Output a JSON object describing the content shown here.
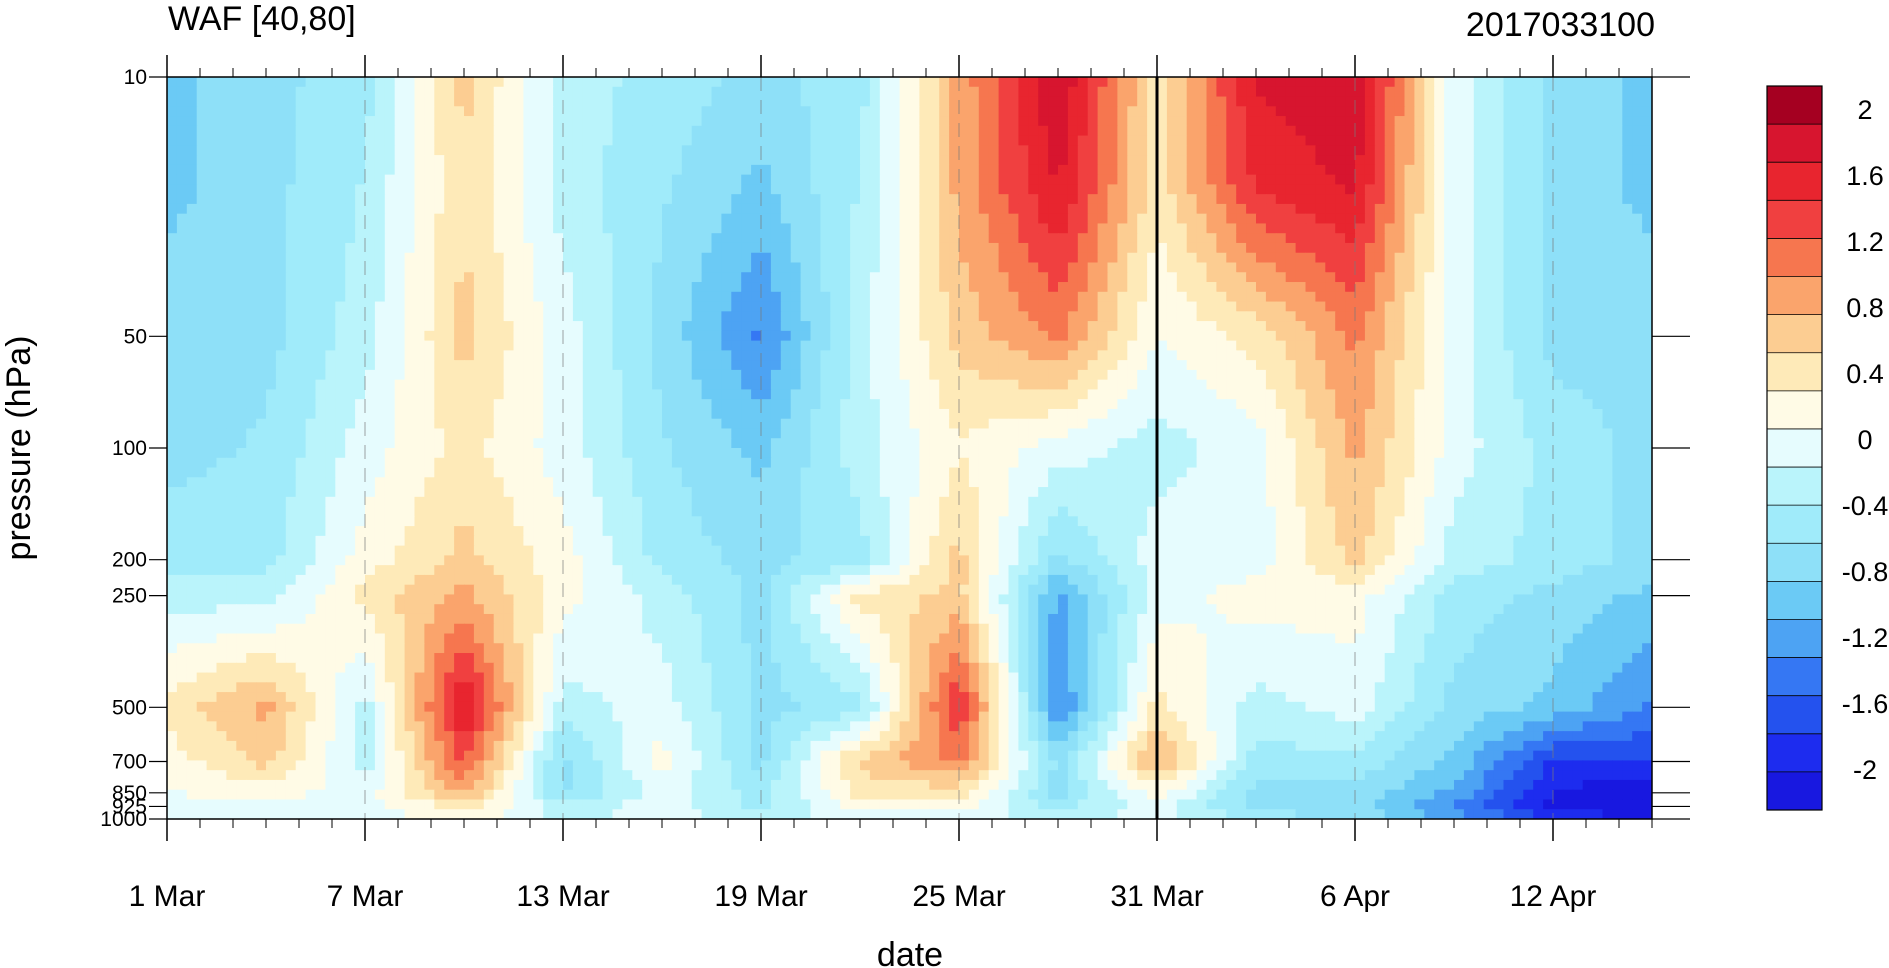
{
  "chart_data": {
    "type": "heatmap",
    "title": "WAF [40,80]",
    "subtitle": "2017033100",
    "xlabel": "date",
    "ylabel": "pressure (hPa)",
    "y_scale": "log",
    "y_reversed": true,
    "x_range": [
      "2017-03-01",
      "2017-04-15"
    ],
    "y_range": [
      1000,
      10
    ],
    "x_ticks": [
      {
        "date": "2017-03-01",
        "label": "1 Mar"
      },
      {
        "date": "2017-03-07",
        "label": "7 Mar"
      },
      {
        "date": "2017-03-13",
        "label": "13 Mar"
      },
      {
        "date": "2017-03-19",
        "label": "19 Mar"
      },
      {
        "date": "2017-03-25",
        "label": "25 Mar"
      },
      {
        "date": "2017-03-31",
        "label": "31 Mar"
      },
      {
        "date": "2017-04-06",
        "label": "6 Apr"
      },
      {
        "date": "2017-04-12",
        "label": "12 Apr"
      }
    ],
    "y_ticks": [
      {
        "value": 10,
        "label": "10"
      },
      {
        "value": 50,
        "label": "50"
      },
      {
        "value": 100,
        "label": "100"
      },
      {
        "value": 200,
        "label": "200"
      },
      {
        "value": 250,
        "label": "250"
      },
      {
        "value": 500,
        "label": "500"
      },
      {
        "value": 700,
        "label": "700"
      },
      {
        "value": 850,
        "label": "850"
      },
      {
        "value": 925,
        "label": "925"
      },
      {
        "value": 1000,
        "label": "1000"
      }
    ],
    "marker_date": "2017-03-31",
    "dates": [
      "2017-03-01",
      "2017-03-04",
      "2017-03-07",
      "2017-03-10",
      "2017-03-13",
      "2017-03-16",
      "2017-03-19",
      "2017-03-22",
      "2017-03-25",
      "2017-03-28",
      "2017-03-31",
      "2017-04-03",
      "2017-04-06",
      "2017-04-09",
      "2017-04-12",
      "2017-04-15"
    ],
    "levels": [
      10,
      20,
      50,
      100,
      200,
      250,
      500,
      700,
      850,
      925,
      1000
    ],
    "values": [
      [
        -0.8,
        -0.6,
        -0.4,
        0.6,
        -0.2,
        -0.4,
        -0.6,
        -0.4,
        0.8,
        1.8,
        0.4,
        1.6,
        1.8,
        0.0,
        -0.6,
        -0.8
      ],
      [
        -0.8,
        -0.6,
        -0.3,
        0.5,
        -0.2,
        -0.5,
        -0.8,
        -0.3,
        0.8,
        1.6,
        0.4,
        1.4,
        1.6,
        0.0,
        -0.6,
        -0.8
      ],
      [
        -0.6,
        -0.6,
        -0.2,
        0.6,
        0.0,
        -0.6,
        -1.2,
        -0.2,
        0.6,
        1.0,
        0.1,
        0.4,
        1.0,
        0.0,
        -0.6,
        -0.6
      ],
      [
        -0.6,
        -0.5,
        0.0,
        0.4,
        0.0,
        -0.5,
        -0.8,
        -0.2,
        0.3,
        0.0,
        -0.2,
        0.0,
        0.8,
        0.0,
        -0.4,
        -0.6
      ],
      [
        -0.4,
        -0.4,
        0.2,
        0.6,
        0.2,
        -0.4,
        -0.6,
        -0.4,
        0.6,
        -0.6,
        0.0,
        0.0,
        0.6,
        -0.2,
        -0.4,
        -0.6
      ],
      [
        -0.2,
        -0.2,
        0.4,
        0.8,
        0.2,
        -0.2,
        -0.6,
        0.4,
        0.6,
        -1.0,
        0.0,
        0.2,
        0.2,
        -0.4,
        -0.6,
        -0.8
      ],
      [
        0.4,
        0.8,
        -0.2,
        1.6,
        -0.2,
        0.0,
        -0.6,
        -0.4,
        1.4,
        -1.2,
        0.4,
        -0.2,
        0.0,
        -0.6,
        -0.8,
        -1.2
      ],
      [
        0.2,
        0.6,
        -0.2,
        1.2,
        -0.6,
        0.2,
        -0.6,
        0.6,
        1.0,
        -0.6,
        0.8,
        -0.4,
        -0.4,
        -0.8,
        -1.6,
        -1.6
      ],
      [
        0.1,
        0.2,
        0.0,
        0.8,
        -0.6,
        0.0,
        -0.4,
        0.4,
        0.4,
        -0.6,
        0.2,
        -0.6,
        -0.6,
        -1.0,
        -1.8,
        -2.0
      ],
      [
        0.0,
        0.0,
        0.0,
        0.4,
        -0.2,
        0.0,
        -0.4,
        0.2,
        0.2,
        -0.4,
        0.0,
        -0.6,
        -0.6,
        -1.2,
        -1.9,
        -2.0
      ],
      [
        0.0,
        0.0,
        0.0,
        0.2,
        -0.2,
        0.0,
        -0.2,
        0.0,
        0.0,
        -0.2,
        0.0,
        -0.4,
        -0.6,
        -1.0,
        -1.6,
        -1.8
      ]
    ],
    "colorbar": {
      "tick_labels": [
        "2",
        "1.6",
        "1.2",
        "0.8",
        "0.4",
        "0",
        "-0.4",
        "-0.8",
        "-1.2",
        "-1.6",
        "-2"
      ],
      "colors_top_to_bottom": [
        "#a50021",
        "#d7152f",
        "#e8252f",
        "#f04040",
        "#f6764f",
        "#faa46c",
        "#fccd92",
        "#feeab8",
        "#fffbe6",
        "#e6fcfe",
        "#baf4fb",
        "#a0ebfa",
        "#8ee0f8",
        "#6bcaf5",
        "#4da3f3",
        "#3577f3",
        "#2452ee",
        "#1d2cef",
        "#1818e0"
      ]
    },
    "grid": false,
    "legend": "colorbar-right"
  }
}
